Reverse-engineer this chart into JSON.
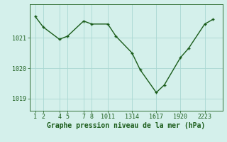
{
  "x": [
    1,
    2,
    4,
    5,
    7,
    8,
    10,
    11,
    13,
    14,
    16,
    17,
    19,
    20,
    22,
    23
  ],
  "y": [
    1021.7,
    1021.35,
    1020.95,
    1021.05,
    1021.55,
    1021.45,
    1021.45,
    1021.05,
    1020.5,
    1019.95,
    1019.2,
    1019.45,
    1020.35,
    1020.65,
    1021.45,
    1021.6
  ],
  "xtick_positions": [
    1,
    2,
    4,
    5,
    7,
    8,
    10,
    13,
    16,
    19,
    22
  ],
  "xtick_labels": [
    "1",
    "2",
    "4",
    "5",
    "7",
    "8",
    "1011",
    "1314",
    "1617",
    "1920",
    "2223"
  ],
  "ytick_labels": [
    "1019",
    "1020",
    "1021"
  ],
  "ytick_positions": [
    1019,
    1020,
    1021
  ],
  "ylim": [
    1018.6,
    1022.1
  ],
  "xlim": [
    0.3,
    24.2
  ],
  "line_color": "#1a5c1a",
  "marker_color": "#1a5c1a",
  "bg_color": "#d4f0eb",
  "grid_color": "#aad8d2",
  "xlabel": "Graphe pression niveau de la mer (hPa)",
  "xlabel_color": "#1a5c1a",
  "xlabel_fontsize": 7,
  "tick_fontsize": 6,
  "linewidth": 1.0,
  "markersize": 2.5
}
